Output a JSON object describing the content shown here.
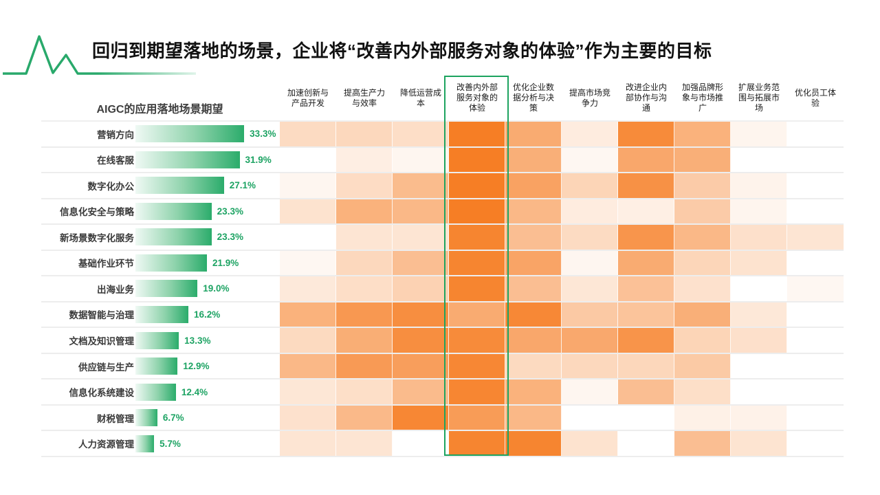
{
  "slide_title": "回归到期望落地的场景，企业将“改善内外部服务对象的体验”作为主要的目标",
  "colors": {
    "accent_green": "#1CA35F",
    "bar_gradient_end": "#2BAC6B",
    "value_text_green": "#1DA363",
    "heat_base_orange": "#F67E25",
    "row_divider": "#EDEDED"
  },
  "chart_data": {
    "type": "heatmap",
    "title": "AIGC的应用落地场景期望",
    "bar_value_unit": "%",
    "heat_scale_note": "heat values are relative cell intensities 0-1 estimated from orange saturation; no numeric labels shown in cells",
    "base_rgb": "246,126,37",
    "columns": [
      "加速创新与产品开发",
      "提高生产力与效率",
      "降低运营成本",
      "改善内外部服务对象的体验",
      "优化企业数据分析与决策",
      "提高市场竞争力",
      "改进企业内部协作与沟通",
      "加强品牌形象与市场推广",
      "扩展业务范围与拓展市场",
      "优化员工体验"
    ],
    "highlighted_column": "改善内外部服务对象的体验",
    "rows": [
      {
        "label": "营销方向",
        "value": 33.3,
        "heat": [
          0.28,
          0.3,
          0.26,
          1.0,
          0.65,
          0.15,
          0.9,
          0.6,
          0.08,
          0
        ]
      },
      {
        "label": "在线客服",
        "value": 31.9,
        "heat": [
          0,
          0.13,
          0.07,
          1.0,
          0.62,
          0.06,
          0.68,
          0.62,
          0,
          0
        ]
      },
      {
        "label": "数字化办公",
        "value": 27.1,
        "heat": [
          0.07,
          0.27,
          0.52,
          1.0,
          0.72,
          0.33,
          0.85,
          0.4,
          0.09,
          0
        ]
      },
      {
        "label": "信息化安全与策略",
        "value": 23.3,
        "heat": [
          0.22,
          0.6,
          0.55,
          1.0,
          0.55,
          0.15,
          0.12,
          0.4,
          0.08,
          0
        ]
      },
      {
        "label": "新场景数字化服务",
        "value": 23.3,
        "heat": [
          0,
          0.2,
          0.2,
          0.95,
          0.5,
          0.28,
          0.82,
          0.55,
          0.24,
          0.2
        ]
      },
      {
        "label": "基础作业环节",
        "value": 21.9,
        "heat": [
          0.06,
          0.3,
          0.5,
          0.95,
          0.7,
          0.07,
          0.65,
          0.32,
          0.22,
          0
        ]
      },
      {
        "label": "出海业务",
        "value": 19.0,
        "heat": [
          0.17,
          0.26,
          0.35,
          0.95,
          0.5,
          0.19,
          0.48,
          0.23,
          0,
          0.06
        ]
      },
      {
        "label": "数据智能与治理",
        "value": 16.2,
        "heat": [
          0.6,
          0.8,
          0.88,
          0.65,
          0.92,
          0.42,
          0.46,
          0.62,
          0.18,
          0
        ]
      },
      {
        "label": "文档及知识管理",
        "value": 13.3,
        "heat": [
          0.29,
          0.63,
          0.88,
          0.9,
          0.68,
          0.67,
          0.83,
          0.33,
          0.24,
          0
        ]
      },
      {
        "label": "供应链与生产",
        "value": 12.9,
        "heat": [
          0.55,
          0.78,
          0.75,
          0.93,
          0.29,
          0.3,
          0.31,
          0.41,
          0,
          0
        ]
      },
      {
        "label": "信息化系统建设",
        "value": 12.4,
        "heat": [
          0.19,
          0.25,
          0.53,
          0.94,
          0.6,
          0.07,
          0.5,
          0.25,
          0,
          0
        ]
      },
      {
        "label": "财税管理",
        "value": 6.7,
        "heat": [
          0.23,
          0.54,
          0.93,
          0.77,
          0.55,
          0,
          0,
          0.11,
          0.1,
          0
        ]
      },
      {
        "label": "人力资源管理",
        "value": 5.7,
        "heat": [
          0.2,
          0.2,
          0,
          0.95,
          0.95,
          0.22,
          0,
          0.5,
          0.21,
          0
        ]
      }
    ]
  }
}
